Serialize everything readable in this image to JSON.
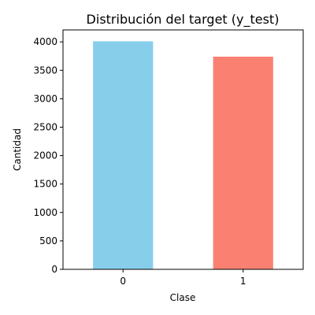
{
  "chart_data": {
    "type": "bar",
    "title": "Distribución del target (y_test)",
    "xlabel": "Clase",
    "ylabel": "Cantidad",
    "categories": [
      "0",
      "1"
    ],
    "values": [
      4010,
      3740
    ],
    "colors": [
      "#87ceeb",
      "#fa8072"
    ],
    "ylim": [
      0,
      4210
    ],
    "yticks": [
      0,
      500,
      1000,
      1500,
      2000,
      2500,
      3000,
      3500,
      4000
    ],
    "grid": false
  }
}
